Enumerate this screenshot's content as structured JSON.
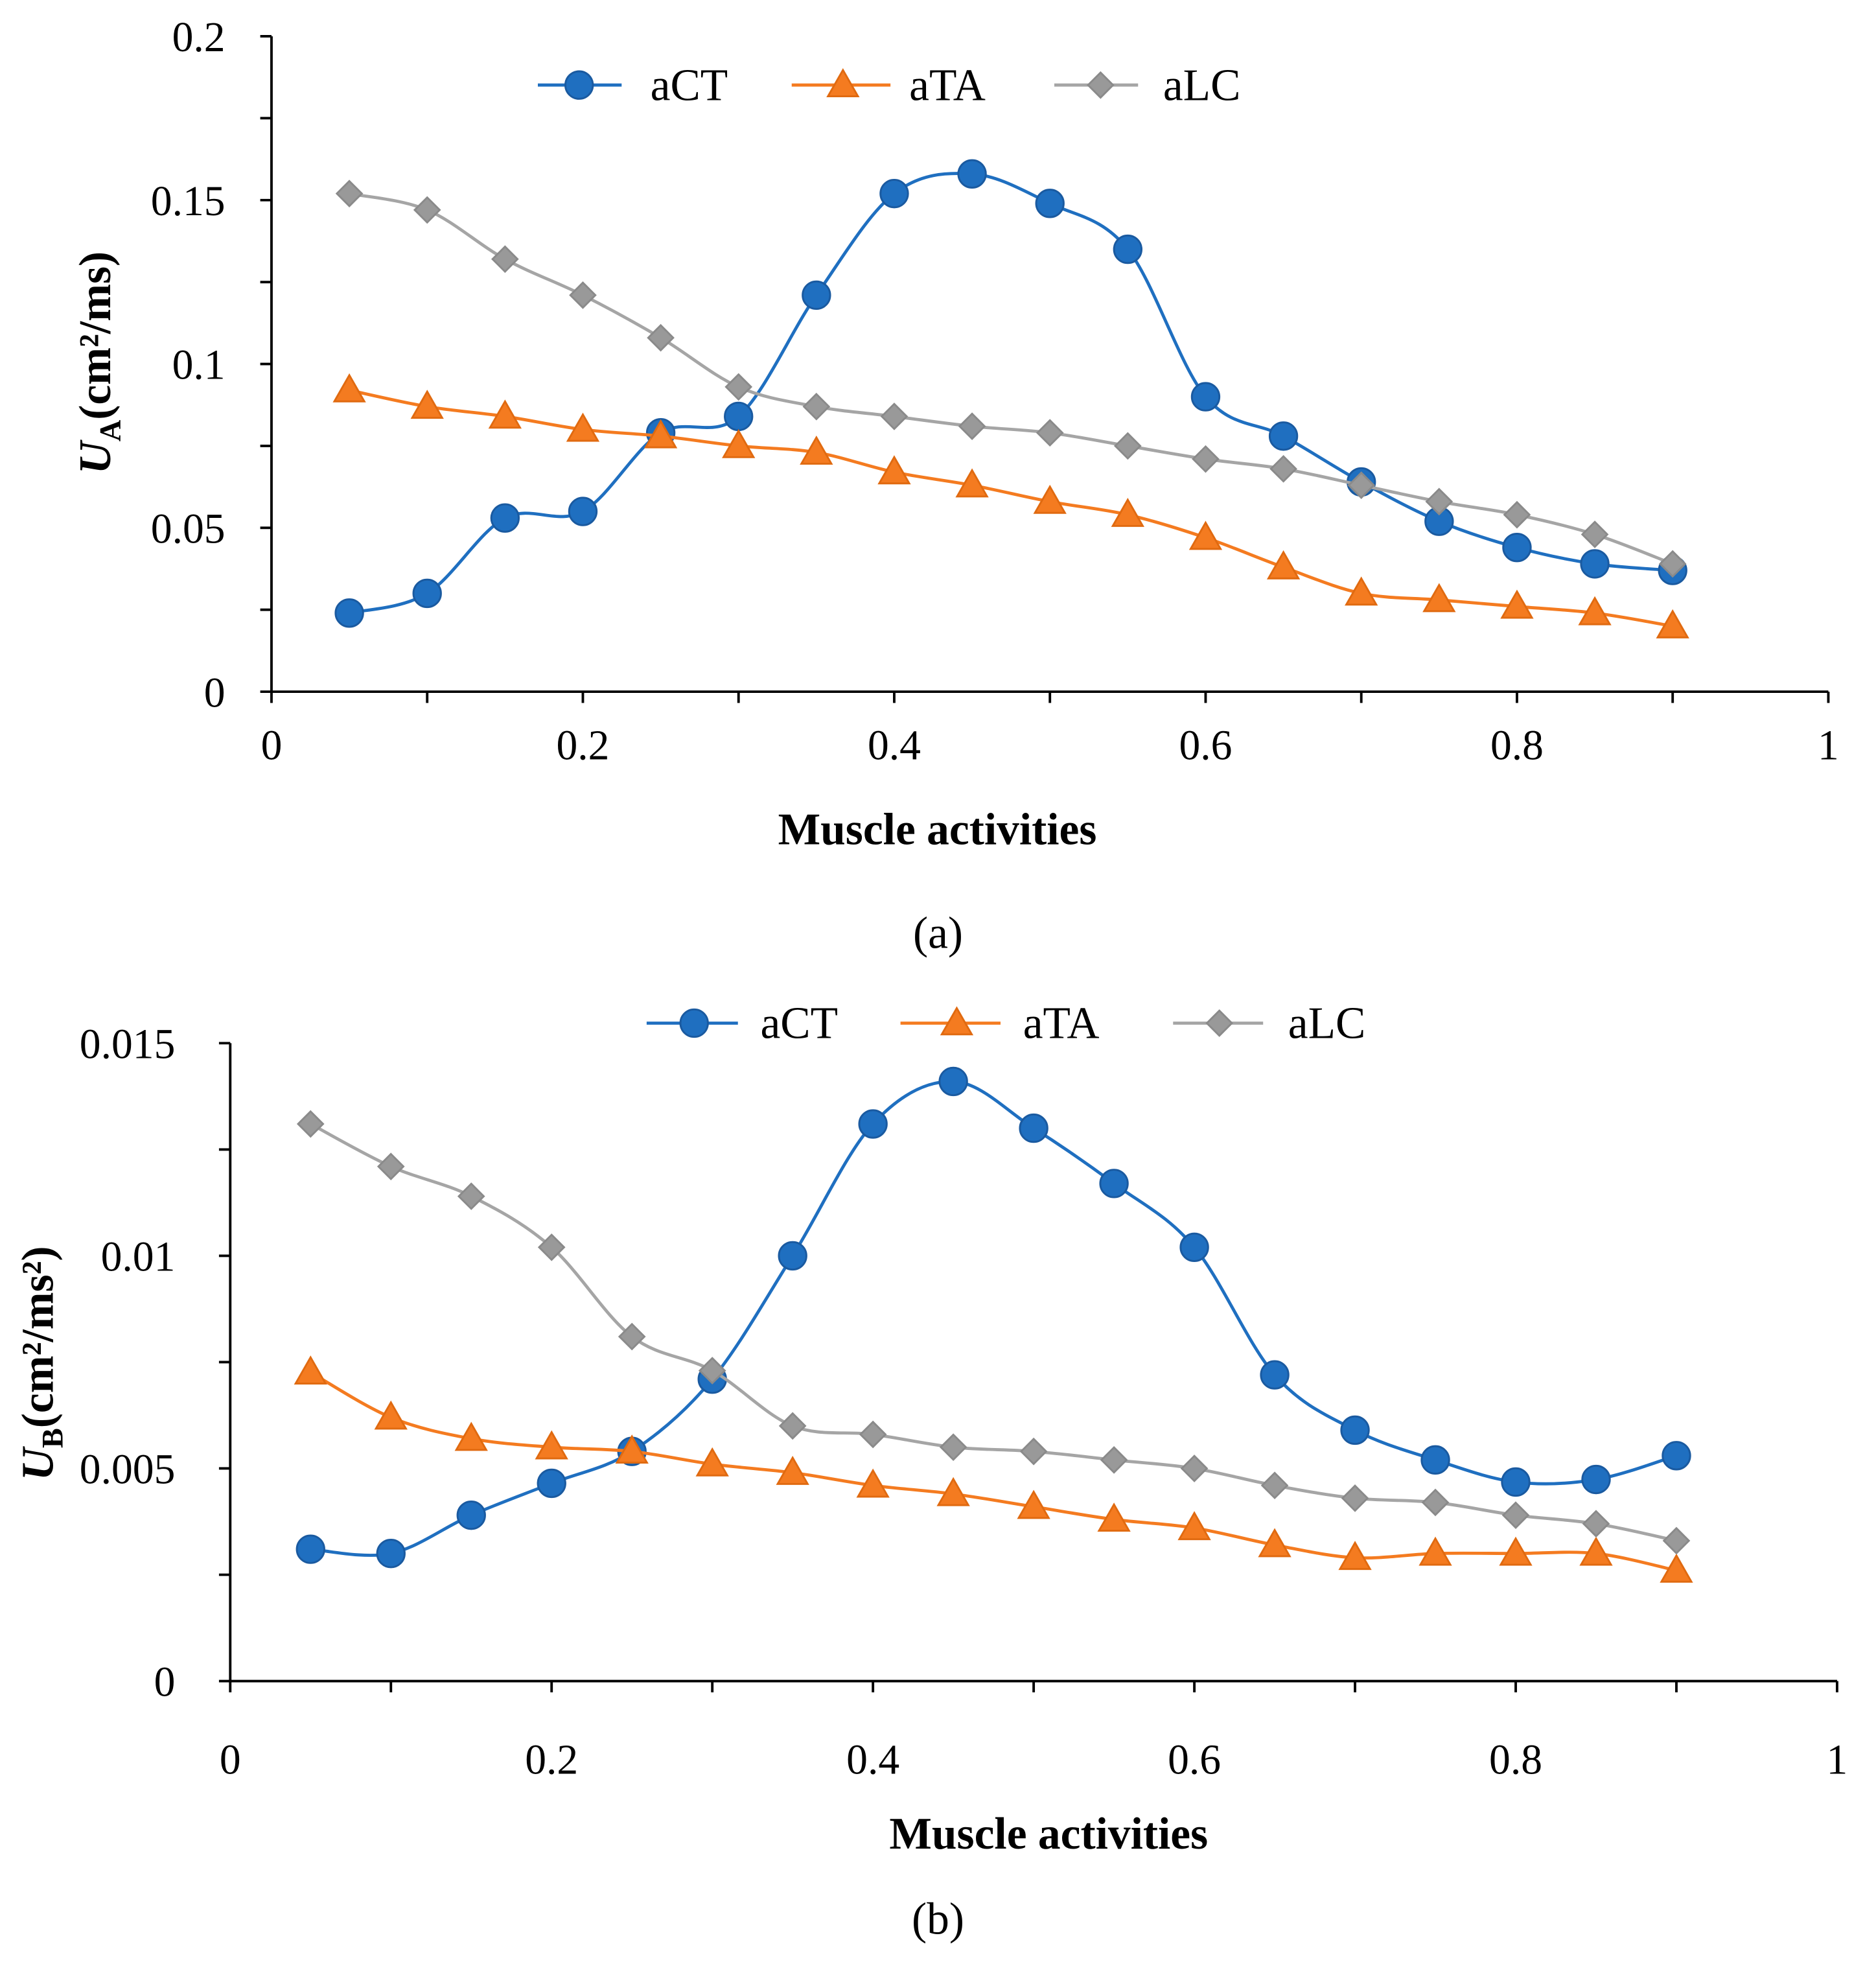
{
  "chart_data": [
    {
      "type": "line",
      "panel": "(a)",
      "xlabel": "Muscle activities",
      "ylabel_main": "U",
      "ylabel_sub": "A",
      "ylabel_unit": "(cm²/ms)",
      "xlim": [
        0,
        1
      ],
      "ylim": [
        0,
        0.2
      ],
      "xticks": [
        "0",
        "0.2",
        "0.4",
        "0.6",
        "0.8",
        "1"
      ],
      "yticks": [
        "0",
        "0.05",
        "0.1",
        "0.15",
        "0.2"
      ],
      "legend_position": "top-center",
      "x": [
        0.05,
        0.1,
        0.15,
        0.2,
        0.25,
        0.3,
        0.35,
        0.4,
        0.45,
        0.5,
        0.55,
        0.6,
        0.65,
        0.7,
        0.75,
        0.8,
        0.85,
        0.9
      ],
      "series": [
        {
          "name": "aCT",
          "color": "#1f6fc0",
          "marker": "circle",
          "values": [
            0.024,
            0.03,
            0.053,
            0.055,
            0.079,
            0.084,
            0.121,
            0.152,
            0.158,
            0.149,
            0.135,
            0.09,
            0.078,
            0.064,
            0.052,
            0.044,
            0.039,
            0.037
          ]
        },
        {
          "name": "aTA",
          "color": "#f47b20",
          "marker": "triangle",
          "values": [
            0.092,
            0.087,
            0.084,
            0.08,
            0.078,
            0.075,
            0.073,
            0.067,
            0.063,
            0.058,
            0.054,
            0.047,
            0.038,
            0.03,
            0.028,
            0.026,
            0.024,
            0.02
          ]
        },
        {
          "name": "aLC",
          "color": "#a5a5a5",
          "marker": "diamond",
          "values": [
            0.152,
            0.147,
            0.132,
            0.121,
            0.108,
            0.093,
            0.087,
            0.084,
            0.081,
            0.079,
            0.075,
            0.071,
            0.068,
            0.063,
            0.058,
            0.054,
            0.048,
            0.039
          ]
        }
      ]
    },
    {
      "type": "line",
      "panel": "(b)",
      "xlabel": "Muscle activities",
      "ylabel_main": "U",
      "ylabel_sub": "B",
      "ylabel_unit": "(cm²/ms²)",
      "xlim": [
        0,
        1
      ],
      "ylim": [
        0,
        0.015
      ],
      "xticks": [
        "0",
        "0.2",
        "0.4",
        "0.6",
        "0.8",
        "1"
      ],
      "yticks": [
        "0",
        "0.005",
        "0.01",
        "0.015"
      ],
      "legend_position": "top-center",
      "x": [
        0.05,
        0.1,
        0.15,
        0.2,
        0.25,
        0.3,
        0.35,
        0.4,
        0.45,
        0.5,
        0.55,
        0.6,
        0.65,
        0.7,
        0.75,
        0.8,
        0.85,
        0.9
      ],
      "series": [
        {
          "name": "aCT",
          "color": "#1f6fc0",
          "marker": "circle",
          "values": [
            0.0031,
            0.003,
            0.0039,
            0.00465,
            0.0054,
            0.0071,
            0.01,
            0.0131,
            0.0141,
            0.013,
            0.0117,
            0.0102,
            0.0072,
            0.0059,
            0.0052,
            0.00468,
            0.00474,
            0.0053
          ]
        },
        {
          "name": "aTA",
          "color": "#f47b20",
          "marker": "triangle",
          "values": [
            0.00726,
            0.0062,
            0.0057,
            0.0055,
            0.0054,
            0.0051,
            0.0049,
            0.0046,
            0.0044,
            0.0041,
            0.0038,
            0.0036,
            0.0032,
            0.0029,
            0.003,
            0.003,
            0.003,
            0.0026
          ]
        },
        {
          "name": "aLC",
          "color": "#a5a5a5",
          "marker": "diamond",
          "values": [
            0.0131,
            0.0121,
            0.0114,
            0.0102,
            0.0081,
            0.0073,
            0.006,
            0.0058,
            0.0055,
            0.0054,
            0.0052,
            0.005,
            0.0046,
            0.0043,
            0.0042,
            0.0039,
            0.0037,
            0.0033
          ]
        }
      ]
    }
  ]
}
